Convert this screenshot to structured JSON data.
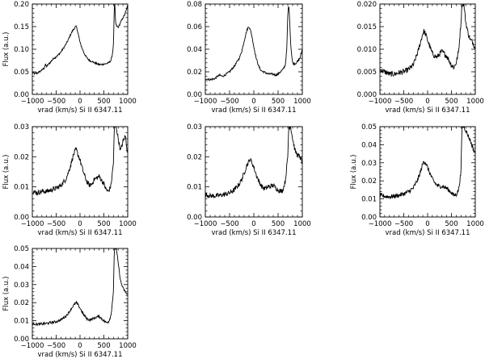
{
  "chart_data": [
    {
      "type": "line",
      "xlabel": "vrad (km/s)   Si II 6347.11",
      "ylabel": "Flux (a.u.)",
      "xlim": [
        -1000,
        1000
      ],
      "xticks": [
        "−1000",
        "−500",
        "0",
        "500",
        "1000"
      ],
      "ylim": [
        0,
        0.2
      ],
      "yticks": [
        "0.00",
        "0.05",
        "0.10",
        "0.15",
        "0.20"
      ],
      "noise": 0.002,
      "series": [
        {
          "x": [
            -1000,
            -950,
            -900,
            -850,
            -800,
            -750,
            -730,
            -700,
            -650,
            -600,
            -550,
            -500,
            -450,
            -400,
            -350,
            -300,
            -250,
            -200,
            -150,
            -120,
            -100,
            -80,
            -50,
            -20,
            0,
            50,
            100,
            150,
            200,
            250,
            300,
            350,
            400,
            450,
            500,
            550,
            600,
            650,
            680,
            700,
            710,
            720,
            730,
            740,
            750,
            780,
            800,
            820,
            850,
            880,
            900,
            930,
            950,
            980,
            1000
          ],
          "y": [
            0.048,
            0.046,
            0.047,
            0.05,
            0.054,
            0.058,
            0.066,
            0.062,
            0.068,
            0.074,
            0.08,
            0.083,
            0.088,
            0.094,
            0.102,
            0.11,
            0.12,
            0.132,
            0.142,
            0.146,
            0.149,
            0.15,
            0.14,
            0.125,
            0.115,
            0.1,
            0.088,
            0.08,
            0.075,
            0.073,
            0.07,
            0.068,
            0.066,
            0.066,
            0.067,
            0.068,
            0.07,
            0.075,
            0.09,
            0.11,
            0.15,
            0.2,
            0.2,
            0.17,
            0.155,
            0.15,
            0.148,
            0.152,
            0.16,
            0.165,
            0.17,
            0.175,
            0.18,
            0.19,
            0.197
          ]
        }
      ]
    },
    {
      "type": "line",
      "xlabel": "vrad (km/s)   Si II 6347.11",
      "ylabel": "",
      "xlim": [
        -1000,
        1000
      ],
      "xticks": [
        "−1000",
        "−500",
        "0",
        "500",
        "1000"
      ],
      "ylim": [
        0,
        0.08
      ],
      "yticks": [
        "0.00",
        "0.02",
        "0.04",
        "0.06",
        "0.08"
      ],
      "noise": 0.0009,
      "series": [
        {
          "x": [
            -1000,
            -900,
            -800,
            -750,
            -700,
            -650,
            -600,
            -500,
            -400,
            -300,
            -250,
            -200,
            -150,
            -120,
            -100,
            -80,
            -50,
            -20,
            0,
            50,
            100,
            150,
            200,
            300,
            400,
            450,
            500,
            550,
            600,
            650,
            680,
            700,
            720,
            740,
            760,
            780,
            800,
            850,
            900,
            950,
            1000
          ],
          "y": [
            0.014,
            0.013,
            0.014,
            0.016,
            0.017,
            0.016,
            0.017,
            0.02,
            0.025,
            0.032,
            0.038,
            0.047,
            0.056,
            0.059,
            0.06,
            0.058,
            0.054,
            0.047,
            0.042,
            0.032,
            0.025,
            0.021,
            0.02,
            0.018,
            0.018,
            0.017,
            0.018,
            0.02,
            0.022,
            0.026,
            0.04,
            0.07,
            0.08,
            0.065,
            0.045,
            0.035,
            0.028,
            0.027,
            0.029,
            0.032,
            0.04
          ]
        }
      ]
    },
    {
      "type": "line",
      "xlabel": "vrad (km/s)   Si II 6347.11",
      "ylabel": "",
      "xlim": [
        -1000,
        1000
      ],
      "xticks": [
        "−1000",
        "−500",
        "0",
        "500",
        "1000"
      ],
      "ylim": [
        0,
        0.02
      ],
      "yticks": [
        "0.000",
        "0.005",
        "0.010",
        "0.015",
        "0.020"
      ],
      "noise": 0.0006,
      "series": [
        {
          "x": [
            -1000,
            -900,
            -800,
            -700,
            -600,
            -500,
            -400,
            -300,
            -250,
            -200,
            -150,
            -100,
            -80,
            -50,
            0,
            50,
            100,
            150,
            200,
            250,
            300,
            400,
            500,
            550,
            600,
            650,
            700,
            720,
            740,
            760,
            800,
            850,
            900,
            950,
            1000
          ],
          "y": [
            0.0055,
            0.005,
            0.0045,
            0.0045,
            0.0048,
            0.005,
            0.0055,
            0.0065,
            0.008,
            0.0095,
            0.0115,
            0.0135,
            0.014,
            0.0135,
            0.012,
            0.0105,
            0.009,
            0.0085,
            0.0082,
            0.009,
            0.0095,
            0.0085,
            0.0065,
            0.006,
            0.007,
            0.0095,
            0.016,
            0.02,
            0.02,
            0.02,
            0.016,
            0.0135,
            0.012,
            0.0115,
            0.0102
          ]
        }
      ]
    },
    {
      "type": "line",
      "xlabel": "vrad (km/s)   Si II 6347.11",
      "ylabel": "Flux (a.u.)",
      "xlim": [
        -1000,
        1000
      ],
      "xticks": [
        "−1000",
        "−500",
        "0",
        "500",
        "1000"
      ],
      "ylim": [
        0,
        0.03
      ],
      "yticks": [
        "0.00",
        "0.01",
        "0.02",
        "0.03"
      ],
      "noise": 0.0008,
      "series": [
        {
          "x": [
            -1000,
            -900,
            -800,
            -700,
            -600,
            -500,
            -400,
            -300,
            -250,
            -200,
            -150,
            -100,
            -80,
            -50,
            0,
            50,
            100,
            150,
            200,
            250,
            300,
            400,
            500,
            550,
            600,
            650,
            700,
            720,
            740,
            760,
            800,
            850,
            900,
            950,
            1000
          ],
          "y": [
            0.0085,
            0.008,
            0.0085,
            0.0085,
            0.009,
            0.0095,
            0.0105,
            0.0125,
            0.0145,
            0.017,
            0.02,
            0.022,
            0.0225,
            0.021,
            0.019,
            0.016,
            0.0135,
            0.0115,
            0.0105,
            0.011,
            0.0125,
            0.0135,
            0.011,
            0.009,
            0.0085,
            0.0105,
            0.018,
            0.03,
            0.03,
            0.03,
            0.026,
            0.022,
            0.025,
            0.027,
            0.021
          ]
        }
      ]
    },
    {
      "type": "line",
      "xlabel": "vrad (km/s)   Si II 6347.11",
      "ylabel": "",
      "xlim": [
        -1000,
        1000
      ],
      "xticks": [
        "−1000",
        "−500",
        "0",
        "500",
        "1000"
      ],
      "ylim": [
        0,
        0.03
      ],
      "yticks": [
        "0.00",
        "0.01",
        "0.02",
        "0.03"
      ],
      "noise": 0.0008,
      "series": [
        {
          "x": [
            -1000,
            -900,
            -800,
            -700,
            -600,
            -500,
            -400,
            -300,
            -250,
            -200,
            -150,
            -100,
            -80,
            -50,
            0,
            50,
            100,
            150,
            200,
            250,
            300,
            400,
            500,
            550,
            600,
            650,
            700,
            720,
            740,
            760,
            800,
            850,
            900,
            950,
            1000
          ],
          "y": [
            0.0075,
            0.007,
            0.007,
            0.0072,
            0.0075,
            0.008,
            0.009,
            0.011,
            0.0125,
            0.0145,
            0.017,
            0.0185,
            0.0192,
            0.0185,
            0.0165,
            0.014,
            0.012,
            0.0105,
            0.0095,
            0.0095,
            0.01,
            0.0105,
            0.009,
            0.0085,
            0.009,
            0.012,
            0.02,
            0.03,
            0.03,
            0.03,
            0.026,
            0.022,
            0.0205,
            0.02,
            0.018
          ]
        }
      ]
    },
    {
      "type": "line",
      "xlabel": "vrad (km/s)   Si II 6347.11",
      "ylabel": "Flux (a.u.)",
      "xlim": [
        -1000,
        1000
      ],
      "xticks": [
        "−1000",
        "−500",
        "0",
        "500",
        "1000"
      ],
      "ylim": [
        0,
        0.05
      ],
      "yticks": [
        "0.00",
        "0.01",
        "0.02",
        "0.03",
        "0.04",
        "0.05"
      ],
      "noise": 0.0012,
      "series": [
        {
          "x": [
            -1000,
            -900,
            -800,
            -700,
            -600,
            -500,
            -400,
            -300,
            -250,
            -200,
            -150,
            -100,
            -80,
            -50,
            0,
            50,
            100,
            150,
            200,
            250,
            300,
            400,
            500,
            550,
            600,
            650,
            700,
            720,
            740,
            760,
            800,
            850,
            900,
            950,
            1000
          ],
          "y": [
            0.012,
            0.0115,
            0.0112,
            0.0115,
            0.012,
            0.0128,
            0.014,
            0.016,
            0.0185,
            0.021,
            0.025,
            0.0295,
            0.031,
            0.0302,
            0.0275,
            0.024,
            0.021,
            0.019,
            0.0175,
            0.017,
            0.017,
            0.016,
            0.0135,
            0.012,
            0.0125,
            0.015,
            0.025,
            0.05,
            0.05,
            0.05,
            0.048,
            0.045,
            0.042,
            0.038,
            0.035
          ]
        }
      ]
    },
    {
      "type": "line",
      "xlabel": "vrad (km/s)   Si II 6347.11",
      "ylabel": "Flux (a.u.)",
      "xlim": [
        -1000,
        1000
      ],
      "xticks": [
        "−1000",
        "−500",
        "0",
        "500",
        "1000"
      ],
      "ylim": [
        0,
        0.05
      ],
      "yticks": [
        "0.00",
        "0.01",
        "0.02",
        "0.03",
        "0.04",
        "0.05"
      ],
      "noise": 0.0007,
      "series": [
        {
          "x": [
            -1000,
            -900,
            -800,
            -700,
            -600,
            -500,
            -400,
            -300,
            -250,
            -200,
            -150,
            -100,
            -80,
            -50,
            0,
            50,
            100,
            150,
            200,
            250,
            300,
            400,
            500,
            550,
            600,
            650,
            700,
            720,
            740,
            760,
            800,
            850,
            900,
            950,
            1000
          ],
          "y": [
            0.0085,
            0.008,
            0.0082,
            0.0085,
            0.009,
            0.0095,
            0.0105,
            0.0125,
            0.014,
            0.016,
            0.018,
            0.0195,
            0.02,
            0.019,
            0.017,
            0.0145,
            0.0125,
            0.011,
            0.0105,
            0.0108,
            0.0115,
            0.0125,
            0.01,
            0.009,
            0.0095,
            0.013,
            0.026,
            0.05,
            0.05,
            0.05,
            0.042,
            0.032,
            0.028,
            0.026,
            0.024
          ]
        }
      ]
    }
  ]
}
